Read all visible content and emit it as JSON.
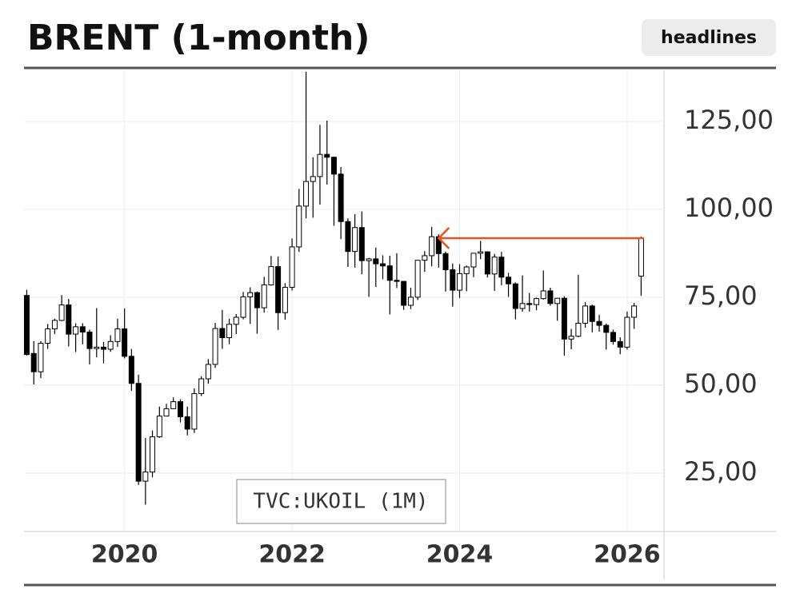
{
  "header": {
    "title": "BRENT (1-month)",
    "button": "headlines"
  },
  "chart_data": {
    "type": "candlestick",
    "annotation": "TVC:UKOIL (1M)",
    "up_color": "#ffffff",
    "down_color": "#000000",
    "outline_color": "#000000",
    "level_line": {
      "y": 91.8,
      "x": [
        2023.75,
        2026.2
      ],
      "color": "#e8541e"
    },
    "xlim": [
      2018.8,
      2026.44
    ],
    "xticks": [
      2020,
      2022,
      2024,
      2026
    ],
    "ylim": [
      8.4,
      139.5
    ],
    "yticks": [
      {
        "value": 25,
        "label": "25,00"
      },
      {
        "value": 50,
        "label": "50,00"
      },
      {
        "value": 75,
        "label": "75,00"
      },
      {
        "value": 100,
        "label": "100,00"
      },
      {
        "value": 125,
        "label": "125,00"
      }
    ],
    "grid": true,
    "x": [
      2018.833,
      2018.917,
      2019.0,
      2019.083,
      2019.167,
      2019.25,
      2019.333,
      2019.417,
      2019.5,
      2019.583,
      2019.667,
      2019.75,
      2019.833,
      2019.917,
      2020.0,
      2020.083,
      2020.167,
      2020.25,
      2020.333,
      2020.417,
      2020.5,
      2020.583,
      2020.667,
      2020.75,
      2020.833,
      2020.917,
      2021.0,
      2021.083,
      2021.167,
      2021.25,
      2021.333,
      2021.417,
      2021.5,
      2021.583,
      2021.667,
      2021.75,
      2021.833,
      2021.917,
      2022.0,
      2022.083,
      2022.167,
      2022.25,
      2022.333,
      2022.417,
      2022.5,
      2022.583,
      2022.667,
      2022.75,
      2022.833,
      2022.917,
      2023.0,
      2023.083,
      2023.167,
      2023.25,
      2023.333,
      2023.417,
      2023.5,
      2023.583,
      2023.667,
      2023.75,
      2023.833,
      2023.917,
      2024.0,
      2024.083,
      2024.167,
      2024.25,
      2024.333,
      2024.417,
      2024.5,
      2024.583,
      2024.667,
      2024.75,
      2024.833,
      2024.917,
      2025.0,
      2025.083,
      2025.167,
      2025.25,
      2025.333,
      2025.417,
      2025.5,
      2025.583,
      2025.667,
      2025.75,
      2025.833,
      2025.917,
      2026.0,
      2026.083,
      2026.167
    ],
    "open": [
      75.5,
      59.0,
      53.8,
      61.9,
      66.0,
      68.4,
      72.8,
      64.5,
      66.6,
      65.1,
      60.4,
      60.8,
      60.2,
      62.4,
      66.0,
      58.2,
      50.5,
      22.7,
      25.3,
      35.3,
      41.2,
      43.3,
      45.3,
      41.0,
      37.5,
      47.6,
      51.8,
      55.9,
      66.1,
      63.5,
      67.3,
      69.3,
      75.1,
      76.3,
      72.0,
      78.5,
      83.7,
      70.6,
      77.8,
      89.3,
      100.9,
      107.9,
      109.3,
      115.6,
      114.8,
      110.0,
      96.5,
      88.0,
      94.8,
      85.4,
      85.9,
      84.5,
      83.9,
      79.8,
      79.5,
      72.7,
      75.0,
      85.5,
      86.8,
      92.2,
      87.4,
      82.8,
      77.0,
      81.7,
      83.6,
      87.5,
      87.9,
      81.6,
      86.4,
      80.7,
      78.8,
      71.8,
      73.2,
      72.9,
      74.6,
      76.8,
      73.2,
      74.7,
      63.1,
      63.9,
      67.6,
      72.5,
      68.1,
      67.0,
      65.0,
      62.4,
      60.8,
      69.3,
      81.0
    ],
    "high": [
      77.1,
      62.5,
      62.5,
      67.4,
      68.9,
      75.6,
      74.5,
      67.6,
      67.6,
      65.8,
      71.9,
      62.3,
      64.2,
      68.9,
      71.8,
      60.3,
      53.0,
      35.0,
      37.1,
      43.9,
      44.7,
      46.5,
      46.0,
      43.9,
      49.1,
      52.5,
      57.4,
      67.7,
      71.4,
      68.9,
      70.2,
      76.5,
      77.8,
      76.6,
      80.8,
      86.7,
      86.6,
      79.0,
      91.7,
      105.8,
      139.1,
      114.8,
      124.0,
      125.2,
      114.9,
      112.0,
      97.4,
      98.6,
      99.4,
      86.2,
      89.1,
      86.9,
      86.8,
      87.5,
      79.5,
      77.7,
      85.6,
      88.1,
      95.0,
      92.9,
      88.0,
      84.6,
      84.4,
      84.0,
      87.6,
      91.0,
      88.0,
      87.3,
      87.9,
      81.9,
      79.2,
      81.2,
      76.2,
      74.9,
      82.6,
      77.7,
      74.6,
      75.3,
      66.0,
      81.4,
      73.6,
      72.9,
      70.0,
      67.5,
      65.8,
      63.6,
      70.9,
      73.4,
      92.2
    ],
    "low": [
      58.4,
      50.2,
      52.0,
      60.3,
      64.5,
      68.2,
      61.0,
      59.4,
      61.6,
      55.9,
      57.9,
      56.2,
      59.5,
      60.9,
      57.6,
      48.4,
      21.6,
      16.0,
      23.8,
      35.0,
      41.1,
      43.2,
      39.4,
      35.7,
      36.4,
      46.9,
      50.4,
      54.9,
      60.3,
      61.6,
      64.5,
      68.7,
      67.4,
      64.6,
      70.6,
      78.3,
      65.7,
      68.6,
      76.9,
      87.9,
      97.4,
      97.6,
      101.3,
      107.0,
      95.3,
      91.5,
      83.6,
      83.4,
      81.5,
      75.1,
      77.9,
      80.1,
      70.1,
      77.6,
      71.4,
      71.6,
      74.2,
      82.2,
      83.8,
      83.4,
      76.6,
      72.3,
      74.8,
      76.7,
      80.7,
      85.8,
      80.6,
      76.8,
      78.4,
      75.1,
      68.7,
      70.9,
      70.9,
      71.3,
      74.3,
      72.6,
      68.3,
      58.4,
      60.2,
      63.6,
      66.3,
      65.0,
      65.2,
      60.1,
      61.5,
      58.8,
      60.1,
      66.0,
      75.4
    ],
    "close": [
      58.7,
      53.8,
      61.9,
      66.0,
      68.4,
      72.8,
      64.5,
      66.6,
      65.1,
      60.4,
      60.8,
      60.2,
      62.4,
      66.0,
      58.2,
      50.5,
      22.7,
      25.3,
      35.3,
      41.2,
      43.3,
      45.3,
      41.0,
      37.5,
      47.6,
      51.8,
      55.9,
      66.1,
      63.5,
      67.3,
      69.3,
      75.1,
      76.3,
      72.0,
      78.5,
      83.7,
      70.6,
      77.8,
      89.3,
      100.9,
      107.9,
      109.3,
      115.6,
      114.8,
      110.0,
      96.5,
      88.0,
      94.8,
      85.4,
      85.9,
      84.5,
      83.9,
      79.8,
      79.5,
      72.7,
      75.0,
      85.5,
      86.8,
      92.2,
      87.4,
      82.8,
      77.0,
      81.7,
      83.6,
      87.5,
      87.9,
      81.6,
      86.4,
      80.7,
      78.8,
      71.8,
      73.2,
      72.9,
      74.6,
      76.8,
      73.2,
      74.7,
      63.1,
      63.9,
      67.6,
      72.5,
      68.1,
      67.0,
      65.0,
      62.4,
      60.8,
      69.3,
      72.5,
      91.8
    ]
  }
}
